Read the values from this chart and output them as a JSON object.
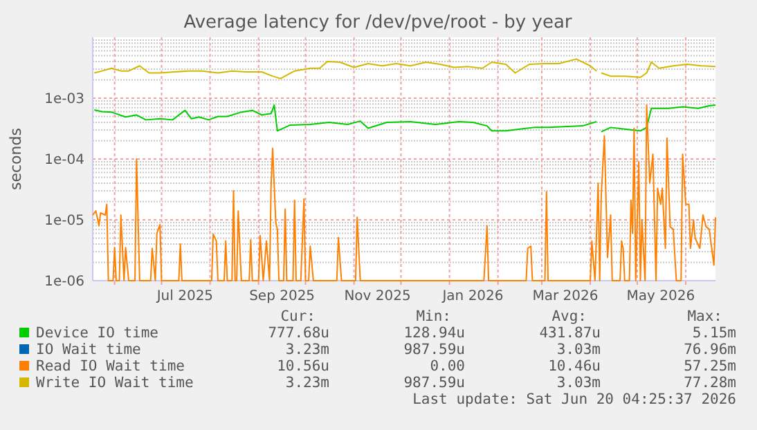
{
  "chart_data": {
    "type": "line",
    "title": "Average latency for /dev/pve/root - by year",
    "ylabel": "seconds",
    "log": true,
    "grid": true,
    "legend": "bottom",
    "xlim": [
      "2025-05-18",
      "2026-06-20"
    ],
    "ylim": [
      1e-06,
      0.01
    ],
    "xticks": [
      {
        "value": "2025-06-01",
        "label": null
      },
      {
        "value": "2025-07-01",
        "label": null
      },
      {
        "value": "2025-07-16",
        "label": "Jul 2025"
      },
      {
        "value": "2025-08-01",
        "label": null
      },
      {
        "value": "2025-09-01",
        "label": null
      },
      {
        "value": "2025-09-16",
        "label": "Sep 2025"
      },
      {
        "value": "2025-10-01",
        "label": null
      },
      {
        "value": "2025-11-01",
        "label": null
      },
      {
        "value": "2025-11-16",
        "label": "Nov 2025"
      },
      {
        "value": "2025-12-01",
        "label": null
      },
      {
        "value": "2026-01-01",
        "label": null
      },
      {
        "value": "2026-01-16",
        "label": "Jan 2026"
      },
      {
        "value": "2026-02-01",
        "label": null
      },
      {
        "value": "2026-03-01",
        "label": null
      },
      {
        "value": "2026-03-16",
        "label": "Mar 2026"
      },
      {
        "value": "2026-04-01",
        "label": null
      },
      {
        "value": "2026-05-01",
        "label": null
      },
      {
        "value": "2026-05-16",
        "label": "May 2026"
      },
      {
        "value": "2026-06-01",
        "label": null
      }
    ],
    "yticks": [
      {
        "value": 1e-06,
        "label": "1e-06"
      },
      {
        "value": 2e-06,
        "label": null
      },
      {
        "value": 3e-06,
        "label": null
      },
      {
        "value": 4e-06,
        "label": null
      },
      {
        "value": 5e-06,
        "label": null
      },
      {
        "value": 6e-06,
        "label": null
      },
      {
        "value": 7e-06,
        "label": null
      },
      {
        "value": 8e-06,
        "label": null
      },
      {
        "value": 9e-06,
        "label": null
      },
      {
        "value": 1e-05,
        "label": "1e-05"
      },
      {
        "value": 2e-05,
        "label": null
      },
      {
        "value": 3e-05,
        "label": null
      },
      {
        "value": 4e-05,
        "label": null
      },
      {
        "value": 5e-05,
        "label": null
      },
      {
        "value": 6e-05,
        "label": null
      },
      {
        "value": 7e-05,
        "label": null
      },
      {
        "value": 8e-05,
        "label": null
      },
      {
        "value": 9e-05,
        "label": null
      },
      {
        "value": 0.0001,
        "label": "1e-04"
      },
      {
        "value": 0.0002,
        "label": null
      },
      {
        "value": 0.0003,
        "label": null
      },
      {
        "value": 0.0004,
        "label": null
      },
      {
        "value": 0.0005,
        "label": null
      },
      {
        "value": 0.0006,
        "label": null
      },
      {
        "value": 0.0007,
        "label": null
      },
      {
        "value": 0.0008,
        "label": null
      },
      {
        "value": 0.0009,
        "label": null
      },
      {
        "value": 0.001,
        "label": "1e-03"
      },
      {
        "value": 0.002,
        "label": null
      },
      {
        "value": 0.003,
        "label": null
      },
      {
        "value": 0.004,
        "label": null
      },
      {
        "value": 0.005,
        "label": null
      },
      {
        "value": 0.006,
        "label": null
      },
      {
        "value": 0.007,
        "label": null
      },
      {
        "value": 0.008,
        "label": null
      },
      {
        "value": 0.009,
        "label": null
      }
    ],
    "series": [
      {
        "name": "Device IO time",
        "color": "#00cc00",
        "x": [
          "2025-05-19",
          "2025-05-24",
          "2025-05-30",
          "2025-06-08",
          "2025-06-15",
          "2025-06-21",
          "2025-06-30",
          "2025-07-08",
          "2025-07-16",
          "2025-07-20",
          "2025-07-25",
          "2025-07-31",
          "2025-08-06",
          "2025-08-12",
          "2025-08-21",
          "2025-08-28",
          "2025-09-03",
          "2025-09-09",
          "2025-09-11",
          "2025-09-13",
          "2025-09-21",
          "2025-10-04",
          "2025-10-16",
          "2025-10-28",
          "2025-11-05",
          "2025-11-10",
          "2025-11-22",
          "2025-12-07",
          "2025-12-23",
          "2026-01-07",
          "2026-01-16",
          "2026-01-25",
          "2026-01-28",
          "2026-02-06",
          "2026-02-15",
          "2026-02-24",
          "2026-03-05",
          "2026-03-15",
          "2026-03-27",
          "2026-04-05",
          "2026-04-06",
          "2026-04-08",
          "2026-04-14",
          "2026-04-23",
          "2026-05-03",
          "2026-05-07",
          "2026-05-10",
          "2026-05-21",
          "2026-05-30",
          "2026-06-09",
          "2026-06-16",
          "2026-06-20"
        ],
        "values": [
          0.00064,
          0.0006,
          0.00059,
          0.00049,
          0.00053,
          0.00044,
          0.00046,
          0.00044,
          0.00063,
          0.00046,
          0.00049,
          0.00044,
          0.0005,
          0.0005,
          0.00059,
          0.00063,
          0.00053,
          0.00056,
          0.00077,
          0.00029,
          0.00036,
          0.00037,
          0.0004,
          0.00037,
          0.00042,
          0.00032,
          0.0004,
          0.00041,
          0.00037,
          0.00041,
          0.0004,
          0.00035,
          0.00029,
          0.00029,
          0.00031,
          0.00033,
          0.00033,
          0.00034,
          0.00035,
          0.00041,
          null,
          0.00028,
          0.00033,
          0.00031,
          0.00029,
          0.00033,
          0.00068,
          0.00068,
          0.00072,
          0.00068,
          0.00075,
          0.00077
        ]
      },
      {
        "name": "IO Wait time",
        "color": "#0066b3"
      },
      {
        "name": "Read IO Wait time",
        "color": "#ff8000",
        "x": [
          "2025-05-18",
          "2025-05-20",
          "2025-05-22",
          "2025-05-23",
          "2025-05-26",
          "2025-05-27",
          "2025-05-28",
          "2025-05-31",
          "2025-06-01",
          "2025-06-02",
          "2025-06-04",
          "2025-06-05",
          "2025-06-07",
          "2025-06-08",
          "2025-06-10",
          "2025-06-14",
          "2025-06-15",
          "2025-06-17",
          "2025-06-24",
          "2025-06-25",
          "2025-06-27",
          "2025-06-28",
          "2025-06-30",
          "2025-07-01",
          "2025-07-12",
          "2025-07-13",
          "2025-07-14",
          "2025-08-02",
          "2025-08-03",
          "2025-08-05",
          "2025-08-06",
          "2025-08-10",
          "2025-08-11",
          "2025-08-12",
          "2025-08-15",
          "2025-08-16",
          "2025-08-17",
          "2025-08-18",
          "2025-08-19",
          "2025-08-21",
          "2025-08-26",
          "2025-08-27",
          "2025-08-28",
          "2025-09-01",
          "2025-09-02",
          "2025-09-04",
          "2025-09-06",
          "2025-09-08",
          "2025-09-09",
          "2025-09-10",
          "2025-09-12",
          "2025-09-13",
          "2025-09-14",
          "2025-09-17",
          "2025-09-18",
          "2025-09-19",
          "2025-09-23",
          "2025-09-24",
          "2025-09-25",
          "2025-09-28",
          "2025-09-30",
          "2025-10-01",
          "2025-10-03",
          "2025-10-04",
          "2025-10-06",
          "2025-10-21",
          "2025-10-22",
          "2025-10-24",
          "2025-11-02",
          "2025-11-03",
          "2025-11-05",
          "2026-01-23",
          "2026-01-25",
          "2026-01-26",
          "2026-02-19",
          "2026-02-20",
          "2026-02-22",
          "2026-02-23",
          "2026-03-03",
          "2026-03-04",
          "2026-03-05",
          "2026-04-01",
          "2026-04-02",
          "2026-04-04",
          "2026-04-06",
          "2026-04-07",
          "2026-04-08",
          "2026-04-10",
          "2026-04-12",
          "2026-04-14",
          "2026-04-15",
          "2026-04-20",
          "2026-04-21",
          "2026-04-22",
          "2026-04-23",
          "2026-04-26",
          "2026-04-27",
          "2026-04-28",
          "2026-04-29",
          "2026-04-30",
          "2026-05-02",
          "2026-05-03",
          "2026-05-04",
          "2026-05-06",
          "2026-05-07",
          "2026-05-09",
          "2026-05-11",
          "2026-05-13",
          "2026-05-14",
          "2026-05-16",
          "2026-05-17",
          "2026-05-19",
          "2026-05-20",
          "2026-05-22",
          "2026-05-24",
          "2026-05-26",
          "2026-05-29",
          "2026-05-30",
          "2026-06-01",
          "2026-06-03",
          "2026-06-04",
          "2026-06-06",
          "2026-06-07",
          "2026-06-10",
          "2026-06-12",
          "2026-06-14",
          "2026-06-16",
          "2026-06-19",
          "2026-06-20"
        ],
        "values": [
          1.2e-05,
          1.4e-05,
          8e-06,
          1.3e-05,
          1.2e-05,
          1.8e-05,
          1e-06,
          1e-06,
          3.5e-06,
          1e-06,
          1e-06,
          1.2e-05,
          1e-06,
          3.5e-06,
          1e-06,
          1e-06,
          0.0001,
          1e-06,
          1e-06,
          3.4e-06,
          1e-06,
          6e-06,
          8.4e-06,
          1e-06,
          1e-06,
          4e-06,
          1e-06,
          1e-06,
          5.8e-06,
          4.5e-06,
          1e-06,
          1e-06,
          4.5e-06,
          1e-06,
          1e-06,
          3e-05,
          1e-06,
          1e-06,
          1.4e-05,
          1e-06,
          1e-06,
          4.7e-06,
          1e-06,
          1e-06,
          5.5e-06,
          1e-06,
          4.5e-06,
          1e-06,
          3.7e-05,
          0.00015,
          9e-06,
          7e-06,
          1e-06,
          1e-06,
          1.5e-05,
          1e-06,
          1e-06,
          2.1e-05,
          1e-06,
          1e-06,
          2.2e-05,
          1e-06,
          1e-06,
          3.7e-06,
          1e-06,
          1e-06,
          5.1e-06,
          1e-06,
          1e-06,
          1.1e-05,
          1e-06,
          1e-06,
          8e-06,
          1e-06,
          1e-06,
          3.4e-06,
          3.7e-06,
          1e-06,
          1e-06,
          2.9e-05,
          1e-06,
          1e-06,
          4.5e-06,
          1e-06,
          4e-05,
          1e-06,
          2.5e-05,
          0.00024,
          2.4e-06,
          1.2e-05,
          1e-06,
          1e-06,
          4.5e-06,
          3.4e-06,
          1e-06,
          1e-06,
          2.1e-05,
          6e-06,
          0.00032,
          1e-06,
          9e-05,
          1e-06,
          1e-05,
          1e-06,
          0.00077,
          4e-05,
          0.00012,
          1e-06,
          3.3e-05,
          1.8e-05,
          3.3e-05,
          3.4e-06,
          0.00022,
          7.7e-06,
          7e-06,
          1e-06,
          1e-06,
          0.00012,
          1.8e-05,
          1.8e-05,
          3.4e-06,
          1e-05,
          5e-06,
          3.4e-06,
          1.2e-05,
          7.7e-06,
          7e-06,
          1.8e-06,
          1.1e-05
        ]
      },
      {
        "name": "Write IO Wait time",
        "color": "#d4b800",
        "x": [
          "2025-05-19",
          "2025-05-24",
          "2025-05-30",
          "2025-06-05",
          "2025-06-10",
          "2025-06-17",
          "2025-06-23",
          "2025-06-30",
          "2025-07-09",
          "2025-07-18",
          "2025-07-27",
          "2025-08-06",
          "2025-08-15",
          "2025-08-24",
          "2025-09-03",
          "2025-09-10",
          "2025-09-15",
          "2025-09-24",
          "2025-10-04",
          "2025-10-10",
          "2025-10-15",
          "2025-10-23",
          "2025-11-01",
          "2025-11-10",
          "2025-11-19",
          "2025-11-28",
          "2025-12-07",
          "2025-12-17",
          "2025-12-26",
          "2026-01-04",
          "2026-01-13",
          "2026-01-22",
          "2026-01-28",
          "2026-02-06",
          "2026-02-12",
          "2026-02-21",
          "2026-03-03",
          "2026-03-12",
          "2026-03-23",
          "2026-04-01",
          "2026-04-05",
          "2026-04-06",
          "2026-04-08",
          "2026-04-14",
          "2026-04-23",
          "2026-05-03",
          "2026-05-07",
          "2026-05-10",
          "2026-05-15",
          "2026-05-24",
          "2026-06-02",
          "2026-06-11",
          "2026-06-20"
        ],
        "values": [
          0.0026,
          0.0028,
          0.0031,
          0.0028,
          0.0028,
          0.0034,
          0.0026,
          0.0026,
          0.0027,
          0.0028,
          0.0028,
          0.0026,
          0.0028,
          0.0027,
          0.0027,
          0.0023,
          0.0021,
          0.0028,
          0.0031,
          0.0031,
          0.004,
          0.0039,
          0.0032,
          0.0037,
          0.0034,
          0.0037,
          0.0034,
          0.0039,
          0.0036,
          0.0032,
          0.0033,
          0.0031,
          0.0039,
          0.0036,
          0.0026,
          0.0036,
          0.0037,
          0.0037,
          0.0044,
          0.0034,
          0.0028,
          null,
          0.0026,
          0.0023,
          0.0023,
          0.0022,
          0.0026,
          0.0039,
          0.0031,
          0.0034,
          0.0036,
          0.0034,
          0.0033
        ]
      }
    ],
    "annotations": [
      "Cur:",
      "Min:",
      "Avg:",
      "Max:",
      "777.68u",
      "128.94u",
      "431.87u",
      "5.15m",
      "3.23m",
      "987.59u",
      "3.03m",
      "76.96m",
      "10.56u",
      "0.00",
      "10.46u",
      "57.25m",
      "3.23m",
      "987.59u",
      "3.03m",
      "77.28m",
      "Last update: Sat Jun 20 04:25:37 2026"
    ]
  }
}
